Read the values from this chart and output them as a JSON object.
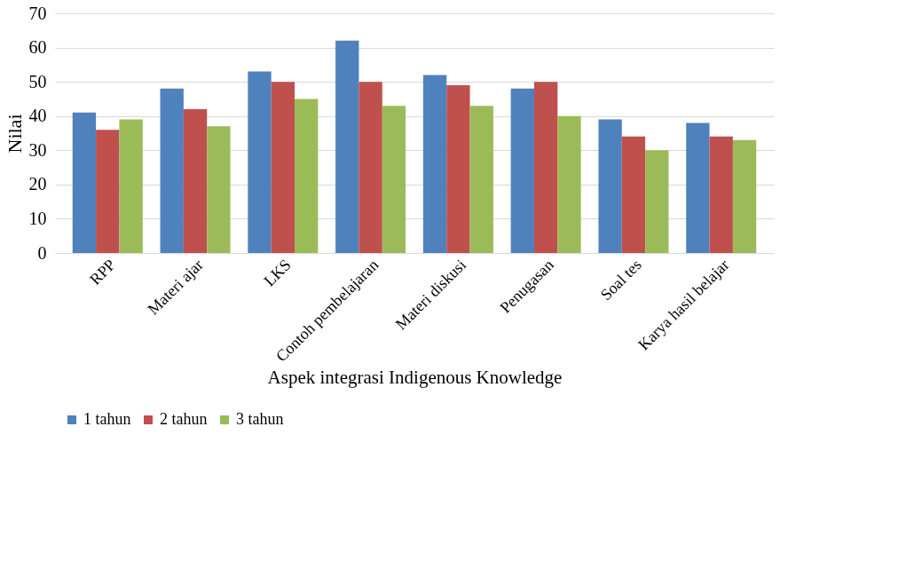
{
  "chart_data": {
    "type": "bar",
    "xlabel": "Aspek integrasi Indigenous Knowledge",
    "ylabel": "Nilai",
    "categories": [
      "RPP",
      "Materi ajar",
      "LKS",
      "Contoh pembelajaran",
      "Materi diskusi",
      "Penugasan",
      "Soal tes",
      "Karya hasil belajar"
    ],
    "series": [
      {
        "name": "1 tahun",
        "color": "#4f81bd",
        "values": [
          41,
          48,
          53,
          62,
          52,
          48,
          39,
          38
        ]
      },
      {
        "name": "2 tahun",
        "color": "#c0504d",
        "values": [
          36,
          42,
          50,
          50,
          49,
          50,
          34,
          34
        ]
      },
      {
        "name": "3 tahun",
        "color": "#9bbb59",
        "values": [
          39,
          37,
          45,
          43,
          43,
          40,
          30,
          33
        ]
      }
    ],
    "ylim": [
      0,
      70
    ],
    "yticks": [
      0,
      10,
      20,
      30,
      40,
      50,
      60,
      70
    ],
    "grid": "y",
    "legend": "bottom"
  }
}
